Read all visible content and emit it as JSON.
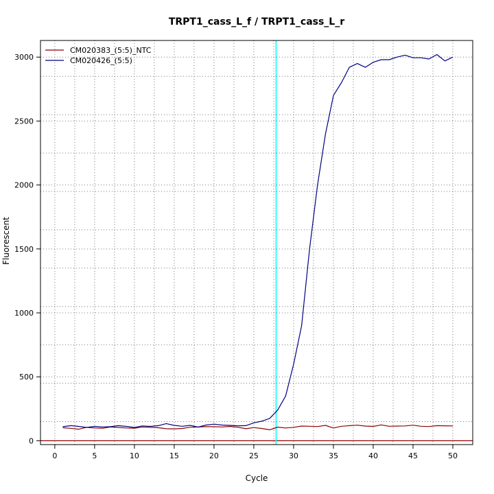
{
  "chart_data": {
    "type": "line",
    "title": "TRPT1_cass_L_f / TRPT1_cass_L_r",
    "xlabel": "Cycle",
    "ylabel": "Fluorescent",
    "xlim": [
      -1.8,
      52.5
    ],
    "ylim": [
      -30,
      3130
    ],
    "x_ticks": [
      0,
      5,
      10,
      15,
      20,
      25,
      30,
      35,
      40,
      45,
      50
    ],
    "y_ticks": [
      0,
      500,
      1000,
      1500,
      2000,
      2500,
      3000
    ],
    "x_grid": [
      2.5,
      7.5,
      12.5,
      17.5,
      22.5,
      27.5,
      32.5,
      37.5,
      42.5,
      47.5
    ],
    "y_grid": [
      150,
      450,
      750,
      1050,
      1350,
      1650,
      1950,
      2250,
      2550,
      2850,
      3150
    ],
    "grid": true,
    "legend_position": "top-left",
    "threshold": {
      "axis": "x",
      "value": 27.8,
      "color": "#00ffff"
    },
    "baseline": {
      "axis": "y",
      "value": 0,
      "color": "#990000"
    },
    "x": [
      1,
      2,
      3,
      4,
      5,
      6,
      7,
      8,
      9,
      10,
      11,
      12,
      13,
      14,
      15,
      16,
      17,
      18,
      19,
      20,
      21,
      22,
      23,
      24,
      25,
      26,
      27,
      28,
      29,
      30,
      31,
      32,
      33,
      34,
      35,
      36,
      37,
      38,
      39,
      40,
      41,
      42,
      43,
      44,
      45,
      46,
      47,
      48,
      49,
      50
    ],
    "series": [
      {
        "name": "CM020383_(5:5)_NTC",
        "color": "#8b0000",
        "values": [
          102,
          97,
          90,
          105,
          100,
          98,
          108,
          104,
          100,
          98,
          108,
          105,
          102,
          94,
          93,
          96,
          106,
          108,
          110,
          110,
          108,
          112,
          106,
          94,
          103,
          96,
          86,
          107,
          100,
          105,
          115,
          113,
          111,
          120,
          100,
          113,
          118,
          122,
          115,
          112,
          124,
          113,
          115,
          116,
          122,
          113,
          111,
          118,
          117,
          116
        ]
      },
      {
        "name": "CM020426_(5:5)",
        "color": "#000080",
        "values": [
          110,
          118,
          112,
          104,
          112,
          108,
          110,
          118,
          112,
          104,
          116,
          112,
          118,
          134,
          120,
          113,
          120,
          107,
          123,
          130,
          123,
          120,
          117,
          118,
          140,
          153,
          175,
          240,
          350,
          600,
          900,
          1500,
          2000,
          2400,
          2700,
          2800,
          2920,
          2950,
          2920,
          2960,
          2980,
          2980,
          3000,
          3015,
          2995,
          2995,
          2985,
          3020,
          2970,
          3000
        ]
      }
    ]
  }
}
